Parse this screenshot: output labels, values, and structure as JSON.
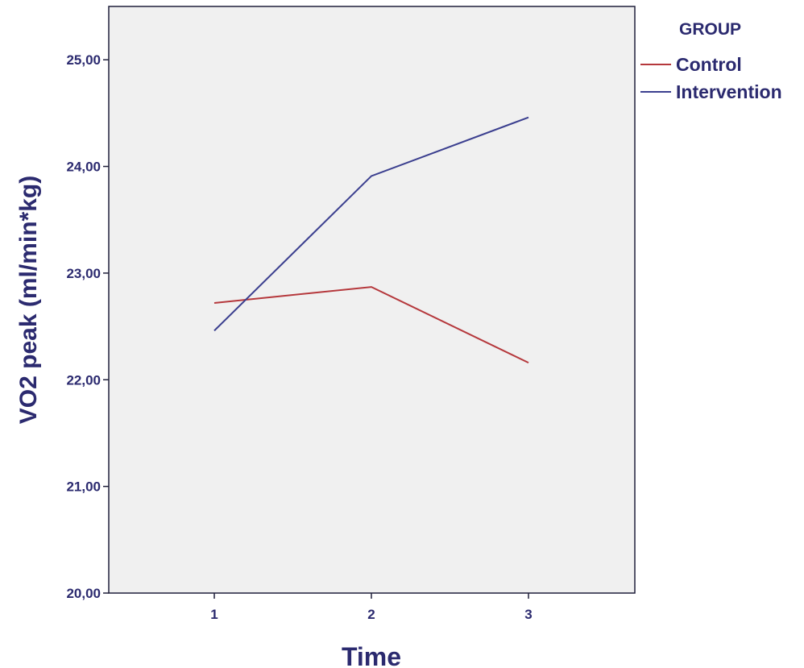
{
  "chart_data": {
    "type": "line",
    "xlabel": "Time",
    "ylabel": "VO2 peak (ml/min*kg)",
    "x": [
      "1",
      "2",
      "3"
    ],
    "ylim": [
      20.0,
      25.5
    ],
    "yticks": [
      "20,00",
      "21,00",
      "22,00",
      "23,00",
      "24,00",
      "25,00"
    ],
    "ytick_values": [
      20,
      21,
      22,
      23,
      24,
      25
    ],
    "legend": {
      "title": "GROUP",
      "placement": "right"
    },
    "plot_background": "#f0f0f0",
    "series": [
      {
        "name": "Control",
        "color": "#b5383c",
        "values": [
          22.72,
          22.87,
          22.16
        ]
      },
      {
        "name": "Intervention",
        "color": "#3b3f8f",
        "values": [
          22.46,
          23.91,
          24.46
        ]
      }
    ]
  }
}
